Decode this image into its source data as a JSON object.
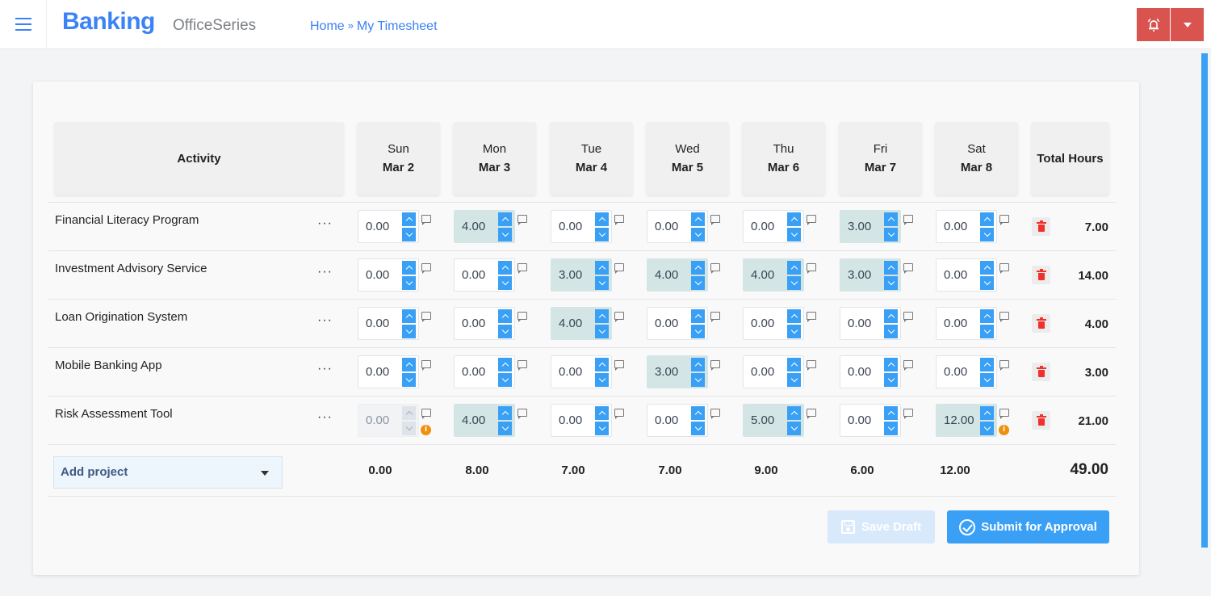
{
  "header": {
    "brand": "Banking",
    "product": "OfficeSeries",
    "breadcrumb": {
      "home": "Home",
      "separator": "»",
      "current": "My Timesheet"
    }
  },
  "colors": {
    "accent": "#3b82f6",
    "spinner": "#3aa0f5",
    "alert_button": "#d9534f",
    "filled_cell": "#d3e6e5",
    "delete_icon": "#f0302a",
    "info_badge": "#f0900f"
  },
  "table": {
    "activity_header": "Activity",
    "total_header": "Total Hours",
    "days": [
      {
        "day": "Sun",
        "date": "Mar 2"
      },
      {
        "day": "Mon",
        "date": "Mar 3"
      },
      {
        "day": "Tue",
        "date": "Mar 4"
      },
      {
        "day": "Wed",
        "date": "Mar 5"
      },
      {
        "day": "Thu",
        "date": "Mar 6"
      },
      {
        "day": "Fri",
        "date": "Mar 7"
      },
      {
        "day": "Sat",
        "date": "Mar 8"
      }
    ],
    "rows": [
      {
        "activity": "Financial Literacy Program",
        "more": "···",
        "hours": [
          "0.00",
          "4.00",
          "0.00",
          "0.00",
          "0.00",
          "3.00",
          "0.00"
        ],
        "total": "7.00"
      },
      {
        "activity": "Investment Advisory Service",
        "more": "···",
        "hours": [
          "0.00",
          "0.00",
          "3.00",
          "4.00",
          "4.00",
          "3.00",
          "0.00"
        ],
        "total": "14.00"
      },
      {
        "activity": "Loan Origination System",
        "more": "···",
        "hours": [
          "0.00",
          "0.00",
          "4.00",
          "0.00",
          "0.00",
          "0.00",
          "0.00"
        ],
        "total": "4.00"
      },
      {
        "activity": "Mobile Banking App",
        "more": "···",
        "hours": [
          "0.00",
          "0.00",
          "0.00",
          "3.00",
          "0.00",
          "0.00",
          "0.00"
        ],
        "total": "3.00"
      },
      {
        "activity": "Risk Assessment Tool",
        "more": "···",
        "hours": [
          "0.00",
          "4.00",
          "0.00",
          "0.00",
          "5.00",
          "0.00",
          "12.00"
        ],
        "total": "21.00"
      }
    ],
    "day_totals": [
      "0.00",
      "8.00",
      "7.00",
      "7.00",
      "9.00",
      "6.00",
      "12.00"
    ],
    "grand_total": "49.00",
    "add_project": "Add project",
    "info_badge_glyph": "i"
  },
  "actions": {
    "save_draft": "Save Draft",
    "submit": "Submit for Approval"
  }
}
